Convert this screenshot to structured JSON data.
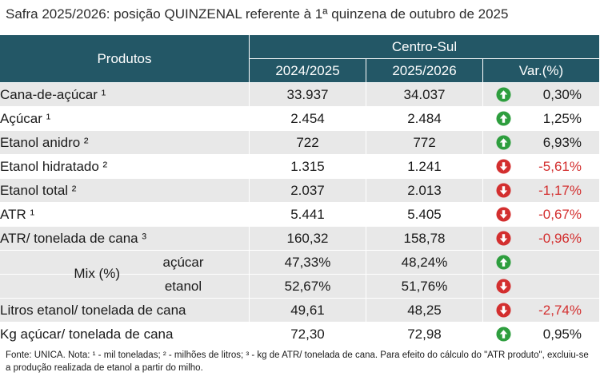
{
  "title": "Safra 2025/2026: posição QUINZENAL referente à 1ª quinzena de outubro de 2025",
  "header": {
    "products": "Produtos",
    "region": "Centro-Sul",
    "year1": "2024/2025",
    "year2": "2025/2026",
    "var": "Var.(%)"
  },
  "rows": [
    {
      "label": "Cana-de-açúcar ¹",
      "v1": "33.937",
      "v2": "34.037",
      "trend": "up",
      "var": "0,30%"
    },
    {
      "label": "Açúcar ¹",
      "v1": "2.454",
      "v2": "2.484",
      "trend": "up",
      "var": "1,25%"
    },
    {
      "label": "Etanol anidro ²",
      "v1": "722",
      "v2": "772",
      "trend": "up",
      "var": "6,93%"
    },
    {
      "label": "Etanol hidratado ²",
      "v1": "1.315",
      "v2": "1.241",
      "trend": "down",
      "var": "-5,61%"
    },
    {
      "label": "Etanol total ²",
      "v1": "2.037",
      "v2": "2.013",
      "trend": "down",
      "var": "-1,17%"
    },
    {
      "label": "ATR ¹",
      "v1": "5.441",
      "v2": "5.405",
      "trend": "down",
      "var": "-0,67%"
    },
    {
      "label": "ATR/ tonelada de cana ³",
      "v1": "160,32",
      "v2": "158,78",
      "trend": "down",
      "var": "-0,96%"
    }
  ],
  "mix": {
    "label": "Mix (%)",
    "rows": [
      {
        "label": "açúcar",
        "v1": "47,33%",
        "v2": "48,24%",
        "trend": "up"
      },
      {
        "label": "etanol",
        "v1": "52,67%",
        "v2": "51,76%",
        "trend": "down"
      }
    ]
  },
  "rows2": [
    {
      "label": "Litros etanol/ tonelada de cana",
      "v1": "49,61",
      "v2": "48,25",
      "trend": "down",
      "var": "-2,74%"
    },
    {
      "label": "Kg açúcar/ tonelada de cana",
      "v1": "72,30",
      "v2": "72,98",
      "trend": "up",
      "var": "0,95%"
    }
  ],
  "footnote": "Fonte: UNICA. Nota: ¹ - mil toneladas; ² - milhões de litros; ³ - kg de ATR/ tonelada de cana. Para efeito do cálculo do \"ATR produto\", excluiu-se a produção realizada de etanol a partir do milho.",
  "colors": {
    "header": "#235766",
    "up": "#2e9e3e",
    "down": "#d32f2f",
    "shade": "#e8e8e8"
  },
  "icons": {
    "up": "arrow-up-circle-icon",
    "down": "arrow-down-circle-icon"
  }
}
